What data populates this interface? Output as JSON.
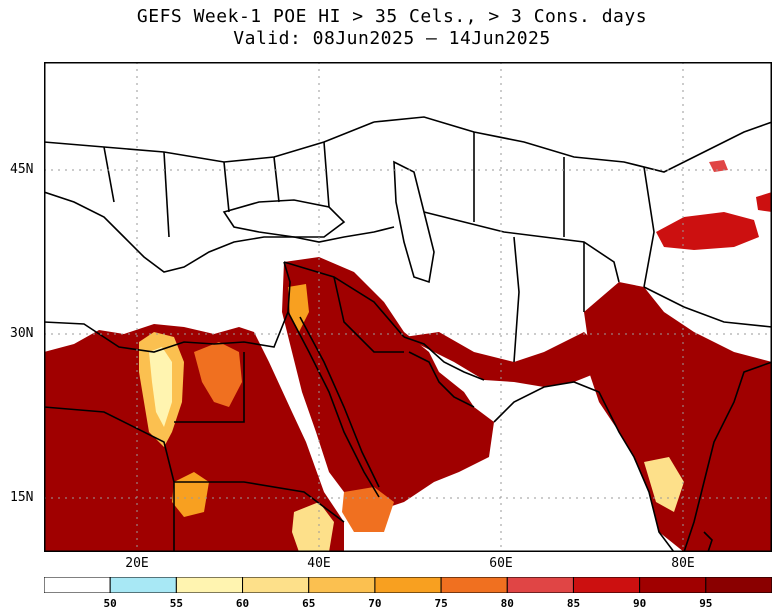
{
  "title": {
    "line1": "GEFS Week-1 POE HI > 35 Cels., > 3 Cons. days",
    "line2": "Valid: 08Jun2025 – 14Jun2025"
  },
  "axes": {
    "lat_labels": [
      "45N",
      "30N",
      "15N"
    ],
    "lon_labels": [
      "20E",
      "40E",
      "60E",
      "80E"
    ]
  },
  "colorbar": {
    "labels": [
      "50",
      "55",
      "60",
      "65",
      "70",
      "75",
      "80",
      "85",
      "90",
      "95"
    ],
    "colors": [
      "#ffffff",
      "#a8e8f5",
      "#fff4b0",
      "#fde08a",
      "#fbc050",
      "#f8a020",
      "#f07020",
      "#e04545",
      "#cc1010",
      "#a00000",
      "#8a0000"
    ]
  },
  "colors": {
    "land": "#ffffff",
    "heat": "#a00000",
    "heat_mid": "#cc1010",
    "heat_low": "#f07020",
    "border": "#000000",
    "grid": "#9a9a9a"
  }
}
